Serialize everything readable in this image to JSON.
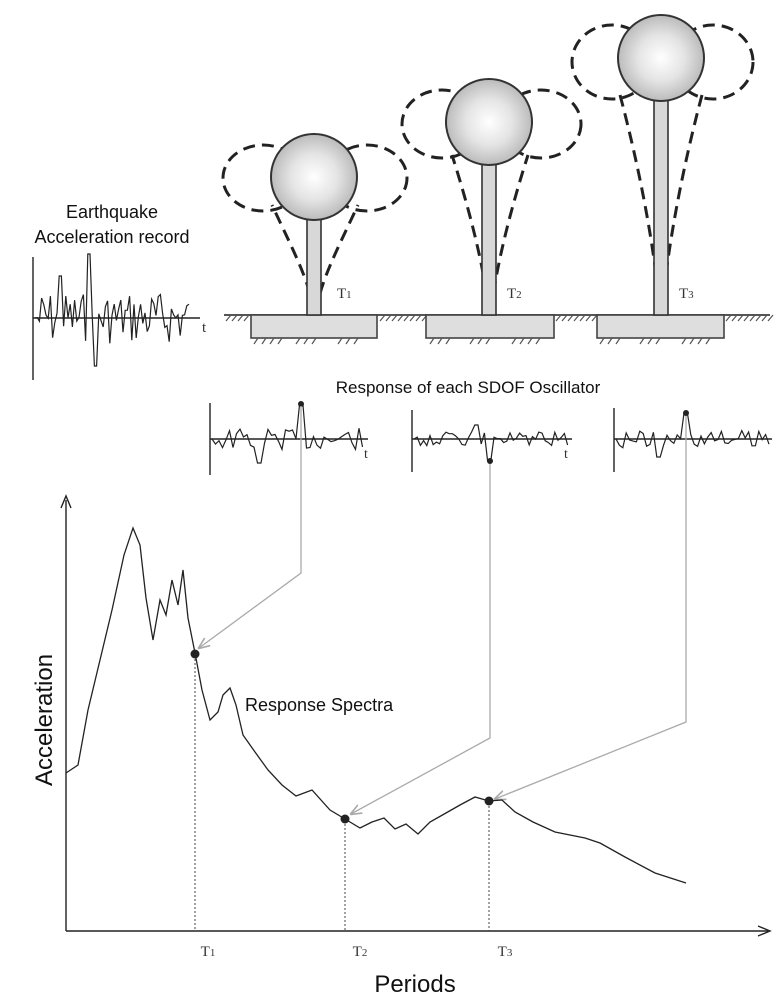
{
  "labels": {
    "eq_record_line1": "Earthquake",
    "eq_record_line2": "Acceleration record",
    "time_symbol": "t",
    "response_title": "Response of each SDOF Oscillator",
    "spectrum_label": "Response Spectra",
    "y_axis_label": "Acceleration",
    "x_axis_label": "Periods"
  },
  "oscillators": [
    {
      "period_label": "T",
      "period_index": "1"
    },
    {
      "period_label": "T",
      "period_index": "2"
    },
    {
      "period_label": "T",
      "period_index": "3"
    }
  ],
  "period_ticks": [
    {
      "label": "T",
      "index": "1"
    },
    {
      "label": "T",
      "index": "2"
    },
    {
      "label": "T",
      "index": "3"
    }
  ],
  "colors": {
    "line": "#222222",
    "leader_line": "#aaaaaa",
    "mass_highlight": "#ffffff",
    "mass_shade": "#a9a9a9",
    "foundation_fill": "#dedede"
  }
}
